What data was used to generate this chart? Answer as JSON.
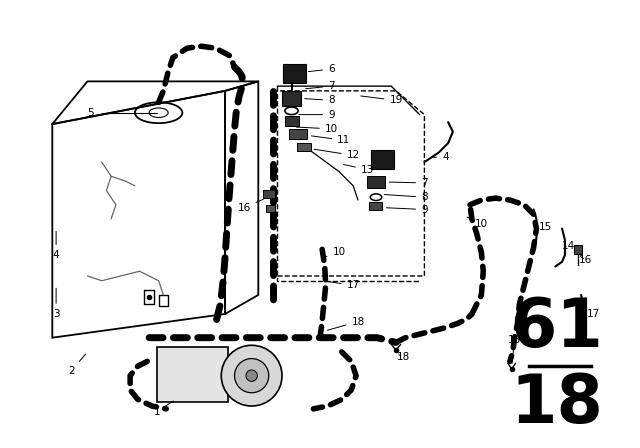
{
  "background_color": "#ffffff",
  "line_color": "#000000",
  "fig_width": 6.4,
  "fig_height": 4.48,
  "dpi": 100,
  "page_number_top": "61",
  "page_number_bottom": "18",
  "page_fontsize": 48
}
